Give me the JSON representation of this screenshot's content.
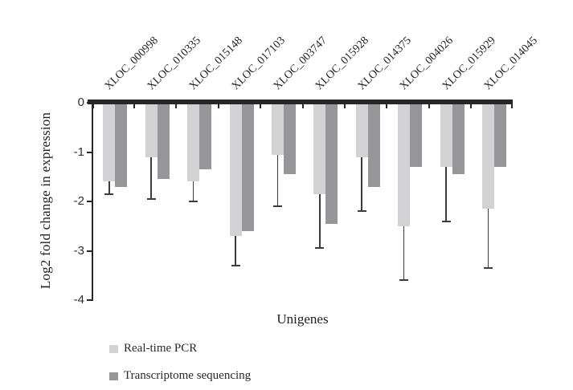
{
  "chart_data": {
    "type": "bar",
    "orientation": "vertical",
    "title": "",
    "xlabel": "Unigenes",
    "ylabel": "Log2 fold change in expression",
    "yticks": [
      0,
      -1,
      -2,
      -3,
      -4
    ],
    "ylim": [
      0,
      -4
    ],
    "grid": false,
    "legend_position": "bottom-left",
    "categories": [
      "XLOC_000998",
      "XLOC_010335",
      "XLOC_015148",
      "XLOC_017103",
      "XLOC_003747",
      "XLOC_015928",
      "XLOC_014375",
      "XLOC_004026",
      "XLOC_015929",
      "XLOC_014045"
    ],
    "series": [
      {
        "name": "Real-time PCR",
        "color": "#d2d2d4",
        "values": [
          -1.6,
          -1.1,
          -1.6,
          -2.7,
          -1.05,
          -1.85,
          -1.1,
          -2.5,
          -1.3,
          -2.15
        ],
        "errors": [
          0.25,
          0.85,
          0.4,
          0.6,
          1.05,
          1.1,
          1.1,
          1.1,
          1.1,
          1.2
        ]
      },
      {
        "name": "Transcriptome sequencing",
        "color": "#96969a",
        "values": [
          -1.7,
          -1.55,
          -1.35,
          -2.6,
          -1.45,
          -2.45,
          -1.7,
          -1.3,
          -1.45,
          -1.3
        ]
      }
    ]
  }
}
